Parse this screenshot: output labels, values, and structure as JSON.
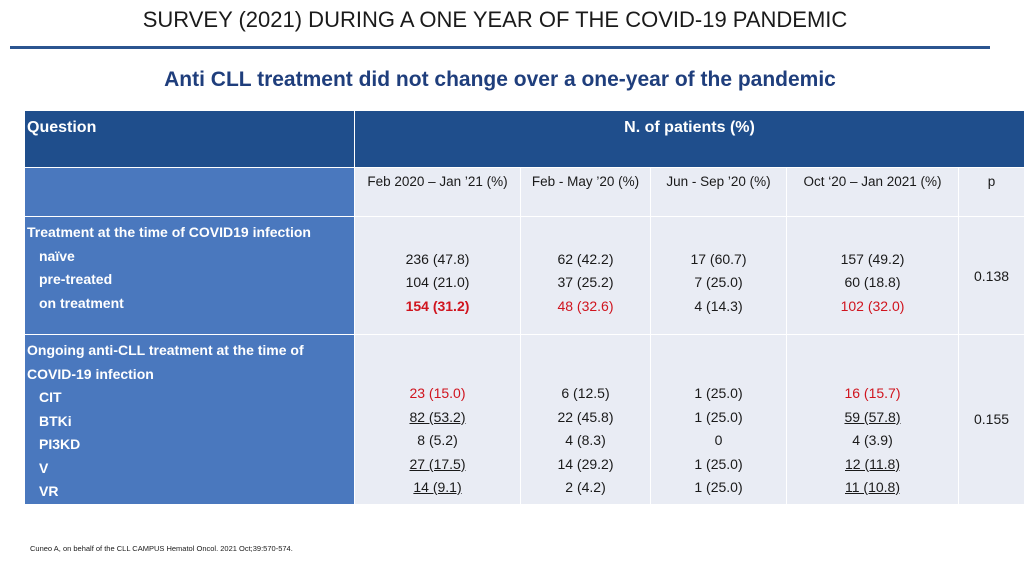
{
  "header": {
    "title": "SURVEY (2021) DURING A ONE YEAR OF THE COVID-19 PANDEMIC",
    "subtitle": "Anti CLL treatment did not change over a one-year of the pandemic"
  },
  "table": {
    "question_header": "Question",
    "patients_header": "N. of patients (%)",
    "columns": [
      "Feb 2020 – Jan ’21 (%)",
      "Feb - May ’20 (%)",
      "Jun - Sep ’20 (%)",
      "Oct ‘20 – Jan 2021  (%)",
      "p"
    ],
    "section1": {
      "title": "Treatment at the time of COVID19 infection",
      "rows": [
        {
          "label": "naïve",
          "c1": "236 (47.8)",
          "c2": "62 (42.2)",
          "c3": "17 (60.7)",
          "c4": "157 (49.2)"
        },
        {
          "label": "pre-treated",
          "c1": "104 (21.0)",
          "c2": "37 (25.2)",
          "c3": "7 (25.0)",
          "c4": "60 (18.8)"
        },
        {
          "label": "on treatment",
          "c1": "154 (31.2)",
          "c2": "48 (32.6)",
          "c3": "4 (14.3)",
          "c4": "102 (32.0)"
        }
      ],
      "p": "0.138"
    },
    "section2": {
      "title_line1": "Ongoing anti-CLL treatment at the time of",
      "title_line2": "COVID-19 infection",
      "rows": [
        {
          "label": "CIT",
          "c1": "23 (15.0)",
          "c2": "6 (12.5)",
          "c3": "1 (25.0)",
          "c4": "16 (15.7)"
        },
        {
          "label": "BTKi",
          "c1": "82 (53.2)",
          "c2": "22 (45.8)",
          "c3": "1 (25.0)",
          "c4": "59 (57.8)"
        },
        {
          "label": "PI3KD",
          "c1": "8 (5.2)",
          "c2": "4 (8.3)",
          "c3": "0",
          "c4": "4 (3.9)"
        },
        {
          "label": "V",
          "c1": "27 (17.5)",
          "c2": "14 (29.2)",
          "c3": "1 (25.0)",
          "c4": "12 (11.8)"
        },
        {
          "label": "VR",
          "c1": "14 (9.1)",
          "c2": "2 (4.2)",
          "c3": "1 (25.0)",
          "c4": "11 (10.8)"
        }
      ],
      "p": "0.155"
    },
    "highlight_color": "#d0141e"
  },
  "footnote": "Cuneo A, on behalf of the CLL CAMPUS Hematol Oncol. 2021 Oct;39:570-574."
}
